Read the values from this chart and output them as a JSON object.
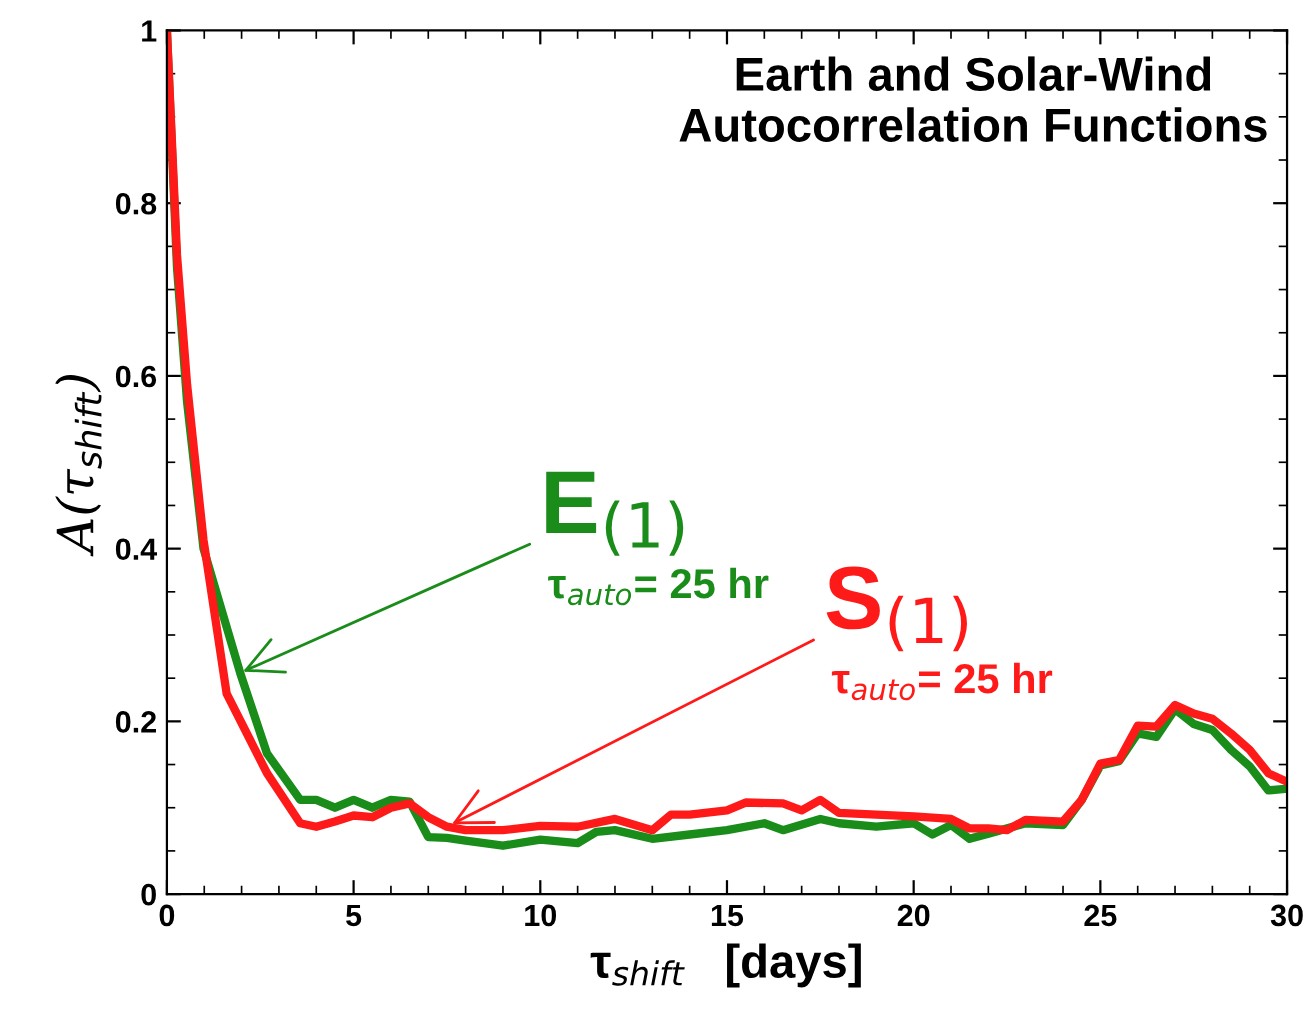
{
  "chart_data": {
    "type": "line",
    "title": "Earth and Solar-Wind\nAutocorrelation Functions",
    "xlabel": "τ$_{shift}$   [days]",
    "ylabel": "A(τ$_{shift}$)",
    "xlim": [
      0,
      30
    ],
    "ylim": [
      0,
      1
    ],
    "xticks": [
      0,
      5,
      10,
      15,
      20,
      25,
      30
    ],
    "yticks": [
      0,
      0.2,
      0.4,
      0.6,
      0.8,
      1
    ],
    "grid": false,
    "legend": false,
    "marker": "none",
    "line_style": "solid",
    "series": [
      {
        "color": "#1a8c1a",
        "x": [
          0,
          0.27,
          0.54,
          0.98,
          1.97,
          2.68,
          3.57,
          4,
          4.5,
          5,
          5.5,
          6,
          6.5,
          7,
          7.5,
          8,
          9,
          10,
          11,
          11.5,
          12,
          13,
          14,
          15,
          16,
          16.5,
          17.5,
          18,
          19,
          20,
          20.5,
          21,
          21.5,
          22,
          23,
          24,
          24.5,
          25,
          25.5,
          26,
          26.5,
          27,
          27.5,
          28,
          28.5,
          29,
          29.5,
          30
        ],
        "values": [
          1,
          0.726,
          0.57,
          0.4,
          0.255,
          0.163,
          0.109,
          0.109,
          0.1,
          0.109,
          0.1,
          0.109,
          0.107,
          0.066,
          0.065,
          0.062,
          0.056,
          0.063,
          0.059,
          0.072,
          0.074,
          0.064,
          0.069,
          0.074,
          0.082,
          0.074,
          0.087,
          0.082,
          0.078,
          0.082,
          0.069,
          0.08,
          0.064,
          0.07,
          0.082,
          0.08,
          0.109,
          0.149,
          0.154,
          0.186,
          0.182,
          0.214,
          0.197,
          0.19,
          0.167,
          0.148,
          0.12,
          0.122
        ]
      },
      {
        "color": "#ff1a1a",
        "x": [
          0,
          0.27,
          0.54,
          0.98,
          1.6,
          2.68,
          3.57,
          4,
          4.5,
          5,
          5.5,
          6,
          6.5,
          7,
          7.5,
          8,
          9,
          10,
          11,
          12,
          13,
          13.5,
          14,
          15,
          15.5,
          16.5,
          17,
          17.5,
          18,
          19,
          20,
          21,
          21.5,
          22,
          22.5,
          23,
          24,
          24.5,
          25,
          25.5,
          26,
          26.5,
          27,
          27.5,
          28,
          28.5,
          29,
          29.5,
          30
        ],
        "values": [
          1,
          0.74,
          0.59,
          0.41,
          0.232,
          0.14,
          0.082,
          0.078,
          0.084,
          0.091,
          0.089,
          0.1,
          0.105,
          0.089,
          0.078,
          0.074,
          0.074,
          0.079,
          0.078,
          0.087,
          0.074,
          0.092,
          0.092,
          0.097,
          0.106,
          0.105,
          0.097,
          0.109,
          0.094,
          0.092,
          0.09,
          0.087,
          0.076,
          0.076,
          0.074,
          0.086,
          0.084,
          0.109,
          0.151,
          0.155,
          0.195,
          0.194,
          0.219,
          0.209,
          0.203,
          0.186,
          0.167,
          0.14,
          0.13
        ]
      }
    ],
    "annotations": [
      {
        "text": "E$_{(1)}$",
        "x": 1.9,
        "y": 0.255
      },
      "τ$_{auto}$= 25 hr",
      {
        "text": "S$_{(1)}$",
        "x": 7.5,
        "y": 0.078
      },
      "τ$_{auto}$= 25 hr"
    ]
  }
}
